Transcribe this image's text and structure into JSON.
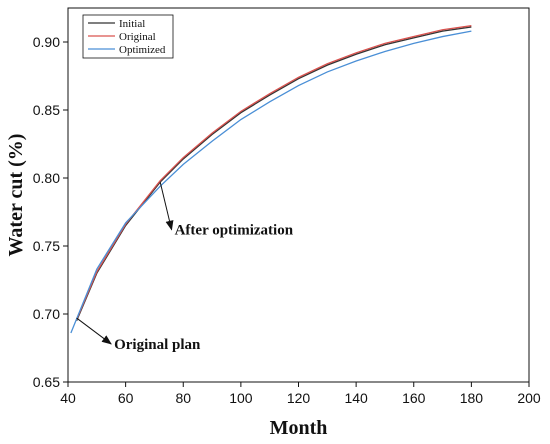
{
  "chart_data": {
    "type": "line",
    "xlabel": "Month",
    "ylabel": "Water cut (%)",
    "xlim": [
      40,
      200
    ],
    "ylim": [
      0.65,
      0.925
    ],
    "xticks": [
      "40",
      "60",
      "80",
      "100",
      "120",
      "140",
      "160",
      "180",
      "200"
    ],
    "yticks": [
      "0.65",
      "0.70",
      "0.75",
      "0.80",
      "0.85",
      "0.90"
    ],
    "legend_position": "top-left",
    "series": [
      {
        "name": "Initial",
        "color": "#333333",
        "x": [
          43,
          50,
          60,
          72,
          80,
          90,
          100,
          110,
          120,
          130,
          140,
          150,
          160,
          170,
          180
        ],
        "y": [
          0.695,
          0.73,
          0.765,
          0.797,
          0.814,
          0.832,
          0.848,
          0.861,
          0.873,
          0.883,
          0.891,
          0.898,
          0.903,
          0.908,
          0.911
        ]
      },
      {
        "name": "Original",
        "color": "#d9534f",
        "x": [
          43,
          50,
          60,
          72,
          80,
          90,
          100,
          110,
          120,
          130,
          140,
          150,
          160,
          170,
          180
        ],
        "y": [
          0.696,
          0.731,
          0.766,
          0.798,
          0.815,
          0.833,
          0.849,
          0.862,
          0.874,
          0.884,
          0.892,
          0.899,
          0.904,
          0.909,
          0.912
        ]
      },
      {
        "name": "Optimized",
        "color": "#4a8fd6",
        "x": [
          41,
          50,
          60,
          72,
          80,
          90,
          100,
          110,
          120,
          130,
          140,
          150,
          160,
          170,
          180
        ],
        "y": [
          0.686,
          0.733,
          0.767,
          0.794,
          0.81,
          0.827,
          0.843,
          0.856,
          0.868,
          0.878,
          0.886,
          0.893,
          0.899,
          0.904,
          0.908
        ]
      }
    ],
    "annotations": [
      {
        "text": "After optimization",
        "point": [
          72,
          0.797
        ],
        "text_at": [
          77,
          0.762
        ]
      },
      {
        "text": "Original plan",
        "point": [
          43,
          0.697
        ],
        "text_at": [
          56,
          0.678
        ]
      }
    ]
  }
}
